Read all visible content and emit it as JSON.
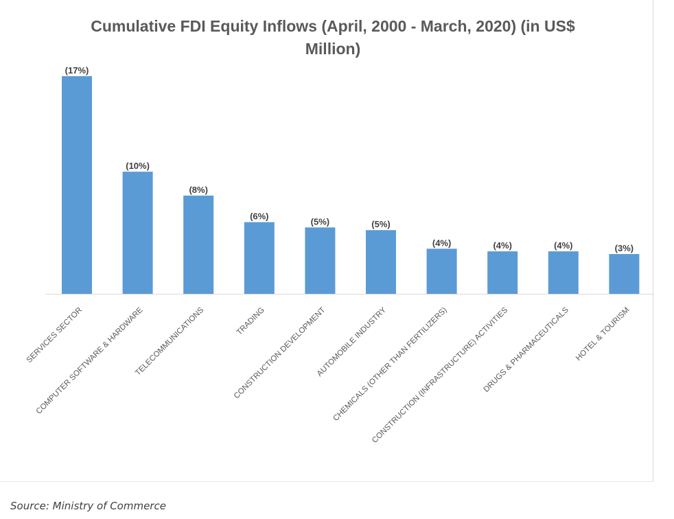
{
  "chart_data": {
    "type": "bar",
    "title": "Cumulative FDI Equity Inflows (April, 2000 - March, 2020) (in US$ Million)",
    "xlabel": "",
    "ylabel": "",
    "grid": false,
    "legend": "none",
    "categories": [
      "SERVICES SECTOR",
      "COMPUTER SOFTWARE & HARDWARE",
      "TELECOMMUNICATIONS",
      "TRADING",
      "CONSTRUCTION DEVELOPMENT",
      "AUTOMOBILE INDUSTRY",
      "CHEMICALS (OTHER THAN FERTILIZERS)",
      "CONSTRUCTION (INFRASTRUCTURE) ACTIVITIES",
      "DRUGS & PHARMACEUTICALS",
      "HOTEL & TOURISM"
    ],
    "values": [
      82000,
      46000,
      37000,
      27000,
      25000,
      24000,
      17000,
      16000,
      16000,
      15000
    ],
    "data_labels": [
      "(17%)",
      "(10%)",
      "(8%)",
      "(6%)",
      "(5%)",
      "(5%)",
      "(4%)",
      "(4%)",
      "(4%)",
      "(3%)"
    ],
    "ylim": [
      0,
      90000
    ],
    "bar_color": "#5b9bd5"
  },
  "source": "Source: Ministry of Commerce"
}
